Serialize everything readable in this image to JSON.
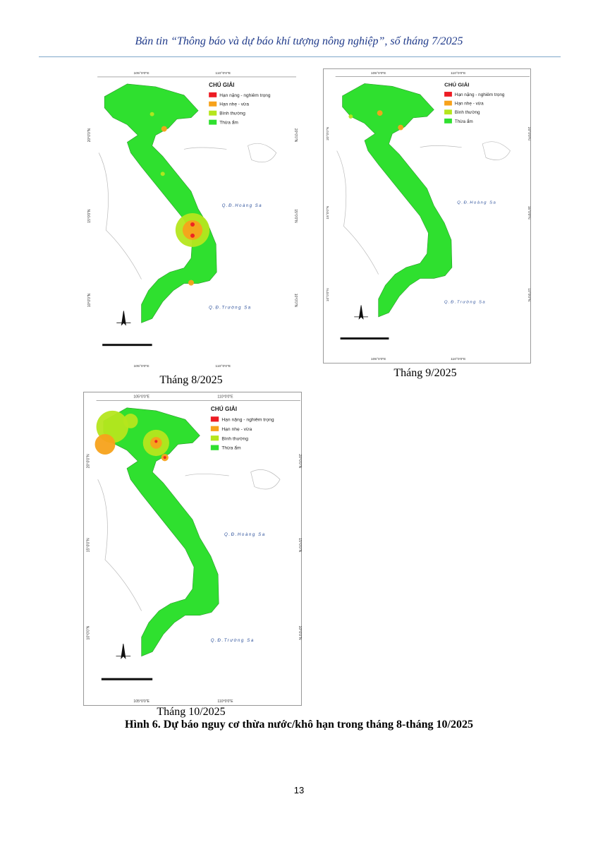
{
  "header": {
    "title": "Bản tin “Thông báo và dự báo khí tượng nông nghiệp”, số tháng 7/2025"
  },
  "maps": [
    {
      "caption": "Tháng 8/2025",
      "legend_title": "CHÚ GIẢI",
      "legend": [
        {
          "label": "Hạn nặng - nghiêm trọng",
          "color": "#ed1c24"
        },
        {
          "label": "Hạn nhẹ - vừa",
          "color": "#f7a21b"
        },
        {
          "label": "Bình thường",
          "color": "#b5e61d"
        },
        {
          "label": "Thừa ẩm",
          "color": "#2fe02f"
        }
      ],
      "lon_labels": [
        "105°0'0\"E",
        "110°0'0\"E"
      ],
      "lat_labels": [
        "20°0'0\"N",
        "15°0'0\"N",
        "10°0'0\"N"
      ],
      "islands": [
        "Q.Đ.Hoàng Sa",
        "Q.Đ.Trường Sa"
      ]
    },
    {
      "caption": "Tháng 9/2025",
      "legend_title": "CHÚ GIẢI",
      "legend": [
        {
          "label": "Hạn nặng - nghiêm trọng",
          "color": "#ed1c24"
        },
        {
          "label": "Hạn nhẹ - vừa",
          "color": "#f7a21b"
        },
        {
          "label": "Bình thường",
          "color": "#b5e61d"
        },
        {
          "label": "Thừa ẩm",
          "color": "#2fe02f"
        }
      ],
      "lon_labels": [
        "105°0'0\"E",
        "110°0'0\"E"
      ],
      "lat_labels": [
        "20°0'0\"N",
        "15°0'0\"N",
        "10°0'0\"N"
      ],
      "islands": [
        "Q.Đ.Hoàng Sa",
        "Q.Đ.Trường Sa"
      ]
    },
    {
      "caption": "Tháng 10/2025",
      "legend_title": "CHÚ GIẢI",
      "legend": [
        {
          "label": "Hạn nặng - nghiêm trọng",
          "color": "#ed1c24"
        },
        {
          "label": "Hạn nhẹ - vừa",
          "color": "#f7a21b"
        },
        {
          "label": "Bình thường",
          "color": "#b5e61d"
        },
        {
          "label": "Thừa ẩm",
          "color": "#2fe02f"
        }
      ],
      "lon_labels": [
        "105°0'0\"E",
        "110°0'0\"E"
      ],
      "lat_labels": [
        "20°0'0\"N",
        "15°0'0\"N",
        "10°0'0\"N"
      ],
      "islands": [
        "Q.Đ.Hoàng Sa",
        "Q.Đ.Trường Sa"
      ]
    }
  ],
  "figure_caption": "Hình 6. Dự báo nguy cơ thừa nước/khô hạn trong tháng 8-tháng 10/2025",
  "page_number": "13"
}
